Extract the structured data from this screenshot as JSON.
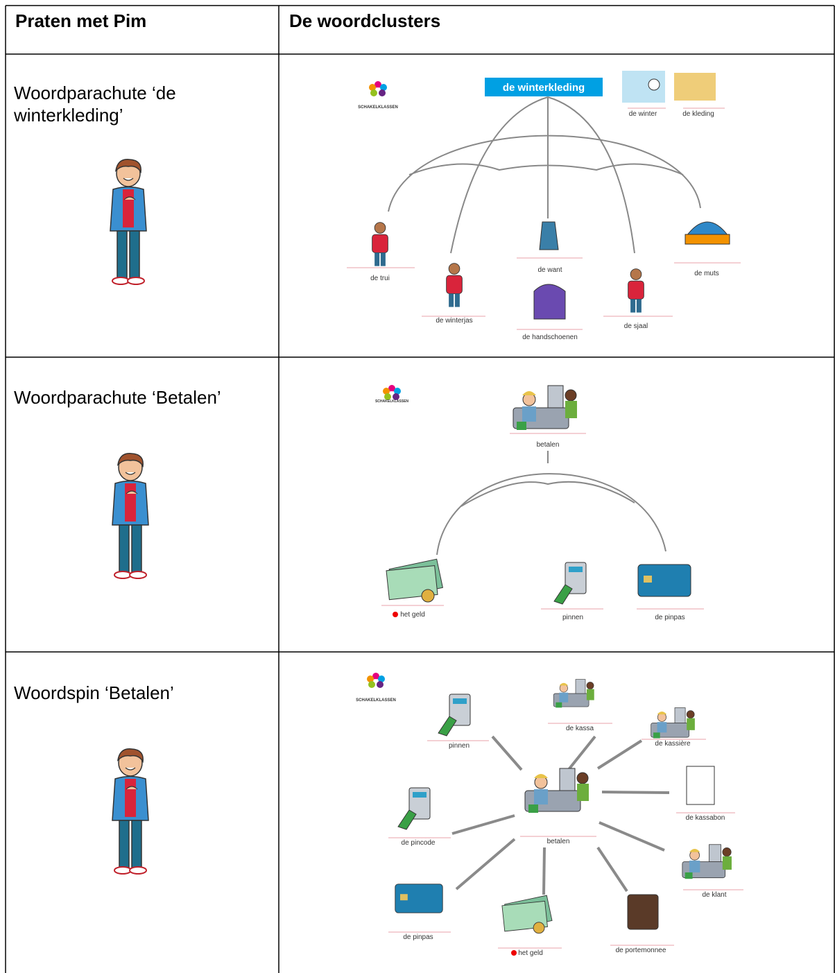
{
  "header": {
    "col1": "Praten met Pim",
    "col2": "De woordclusters"
  },
  "logo": "SCHAKELKLASSEN",
  "rows": [
    {
      "title": "Woordparachute ‘de winterkleding’",
      "cluster": {
        "title": "de winterkleding",
        "words": [
          "de winter",
          "de kleding",
          "de trui",
          "de winterjas",
          "de want",
          "de handschoenen",
          "de sjaal",
          "de muts"
        ]
      }
    },
    {
      "title": "Woordparachute ‘Betalen’",
      "cluster": {
        "words": [
          "betalen",
          "het geld",
          "pinnen",
          "de pinpas"
        ]
      }
    },
    {
      "title": "Woordspin ‘Betalen’",
      "cluster": {
        "words": [
          "pinnen",
          "de kassa",
          "de kassière",
          "de kassabon",
          "de pincode",
          "betalen",
          "de klant",
          "de pinpas",
          "het geld",
          "de portemonnee"
        ]
      }
    }
  ]
}
